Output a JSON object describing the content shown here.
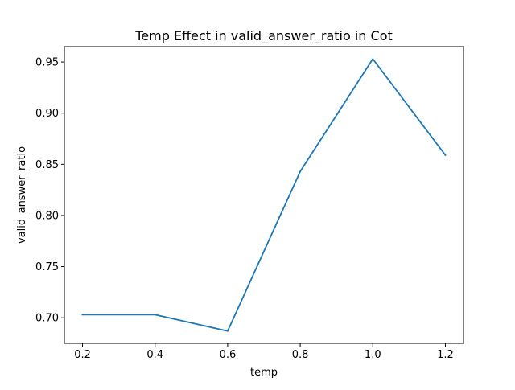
{
  "chart_data": {
    "type": "line",
    "title": "Temp Effect in valid_answer_ratio in Cot",
    "xlabel": "temp",
    "ylabel": "valid_answer_ratio",
    "xlim": [
      0.15,
      1.25
    ],
    "ylim": [
      0.675,
      0.965
    ],
    "xticks": [
      0.2,
      0.4,
      0.6,
      0.8,
      1.0,
      1.2
    ],
    "xtick_labels": [
      "0.2",
      "0.4",
      "0.6",
      "0.8",
      "1.0",
      "1.2"
    ],
    "yticks": [
      0.7,
      0.75,
      0.8,
      0.85,
      0.9,
      0.95
    ],
    "ytick_labels": [
      "0.70",
      "0.75",
      "0.80",
      "0.85",
      "0.90",
      "0.95"
    ],
    "grid": false,
    "series": [
      {
        "color": "#1f77b4",
        "x": [
          0.2,
          0.4,
          0.6,
          0.8,
          1.0,
          1.2
        ],
        "y": [
          0.703,
          0.703,
          0.687,
          0.843,
          0.953,
          0.859
        ]
      }
    ]
  }
}
